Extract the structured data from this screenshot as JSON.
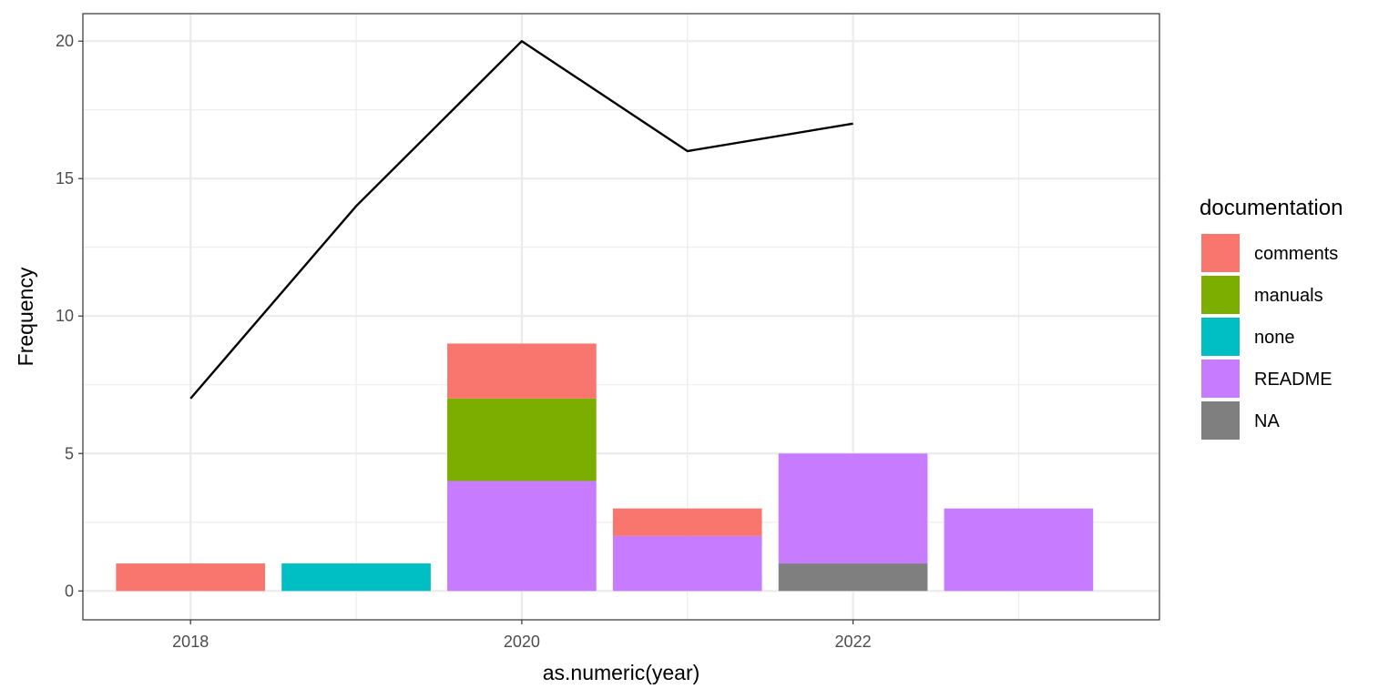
{
  "chart_data": {
    "type": "bar",
    "bar_layout": "stacked",
    "x_label": "as.numeric(year)",
    "y_label": "Frequency",
    "x_ticks": [
      2018,
      2020,
      2022
    ],
    "x_tick_labels": [
      "2018",
      "2020",
      "2022"
    ],
    "y_ticks": [
      0,
      5,
      10,
      15,
      20
    ],
    "y_tick_labels": [
      "0",
      "5",
      "10",
      "15",
      "20"
    ],
    "xlim": [
      2017.35,
      2023.85
    ],
    "ylim": [
      -1.05,
      21.0
    ],
    "grid": true,
    "legend": {
      "title": "documentation",
      "position": "right",
      "entries": [
        {
          "label": "comments",
          "color": "#F8766D"
        },
        {
          "label": "manuals",
          "color": "#7CAE00"
        },
        {
          "label": "none",
          "color": "#00BFC4"
        },
        {
          "label": "README",
          "color": "#C77CFF"
        },
        {
          "label": "NA",
          "color": "#7F7F7F"
        }
      ]
    },
    "bar_width_years": 0.9,
    "bars": [
      {
        "x": 2018,
        "segments": [
          {
            "category": "comments",
            "value": 1
          }
        ]
      },
      {
        "x": 2019,
        "segments": [
          {
            "category": "none",
            "value": 1
          }
        ]
      },
      {
        "x": 2020,
        "segments": [
          {
            "category": "README",
            "value": 4
          },
          {
            "category": "manuals",
            "value": 3
          },
          {
            "category": "comments",
            "value": 2
          }
        ]
      },
      {
        "x": 2021,
        "segments": [
          {
            "category": "README",
            "value": 2
          },
          {
            "category": "comments",
            "value": 1
          }
        ]
      },
      {
        "x": 2022,
        "segments": [
          {
            "category": "NA",
            "value": 1
          },
          {
            "category": "README",
            "value": 4
          }
        ]
      },
      {
        "x": 2023,
        "segments": [
          {
            "category": "README",
            "value": 3
          }
        ]
      }
    ],
    "line": {
      "color": "#000000",
      "points": [
        {
          "x": 2018,
          "y": 7
        },
        {
          "x": 2019,
          "y": 14
        },
        {
          "x": 2020,
          "y": 20
        },
        {
          "x": 2021,
          "y": 16
        },
        {
          "x": 2022,
          "y": 17
        }
      ]
    }
  }
}
